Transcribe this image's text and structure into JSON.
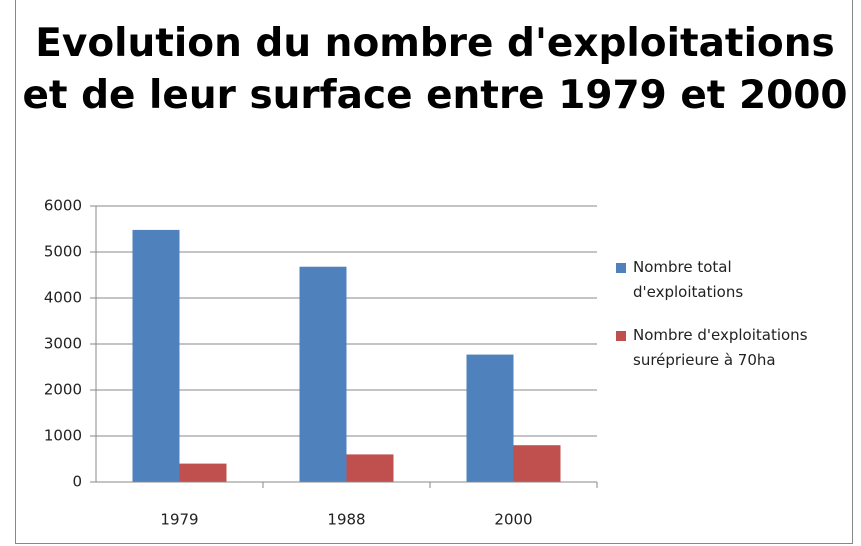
{
  "chart_data": {
    "type": "bar",
    "title": "Evolution du nombre d'exploitations et de leur surface entre 1979 et 2000",
    "categories": [
      "1979",
      "1988",
      "2000"
    ],
    "series": [
      {
        "name": "Nombre total d'exploitations",
        "color": "#4f81bd",
        "values": [
          5480,
          4680,
          2770
        ]
      },
      {
        "name": "Nombre d'exploitations suréprieure à 70ha",
        "color": "#c0504d",
        "values": [
          400,
          600,
          800
        ]
      }
    ],
    "ylim": [
      0,
      6000
    ],
    "yticks": [
      0,
      1000,
      2000,
      3000,
      4000,
      5000,
      6000
    ],
    "grid": true,
    "legend": "right"
  }
}
